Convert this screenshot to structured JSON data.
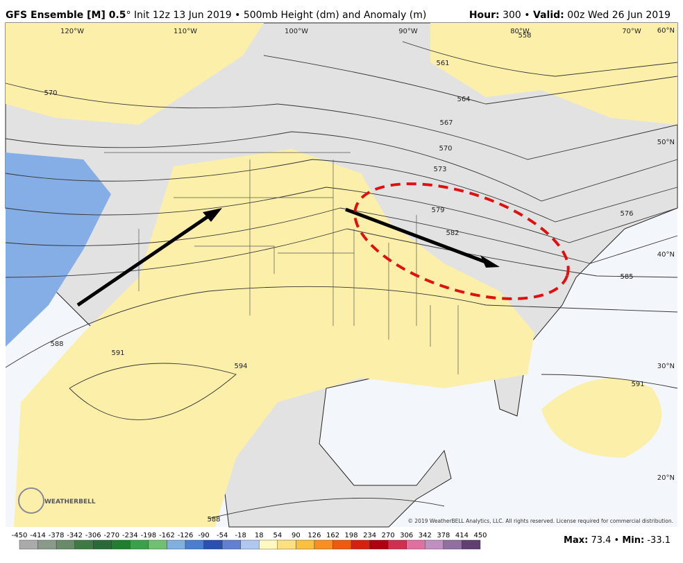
{
  "header": {
    "title_bold": "GFS Ensemble [M] 0.5",
    "title_rest": "° Init 12z 13 Jun 2019 • 500mb Height (dm) and Anomaly (m)",
    "hour_label": "Hour:",
    "hour_value": "300",
    "separator": "•",
    "valid_label": "Valid:",
    "valid_value": "00z Wed 26 Jun 2019"
  },
  "map": {
    "longitudes": [
      "120°W",
      "110°W",
      "100°W",
      "90°W",
      "80°W",
      "70°W"
    ],
    "latitudes": [
      "60°N",
      "50°N",
      "40°N",
      "30°N",
      "20°N"
    ],
    "contour_labels": [
      558,
      561,
      564,
      567,
      570,
      570,
      573,
      576,
      579,
      582,
      585,
      588,
      588,
      591,
      591,
      594
    ],
    "copyright": "© 2019 WeatherBELL Analytics, LLC. All rights reserved. License required for commercial distribution.",
    "logo": "WEATHERBELL"
  },
  "colorbar": {
    "ticks": [
      -450,
      -414,
      -378,
      -342,
      -306,
      -270,
      -234,
      -198,
      -162,
      -126,
      -90,
      -54,
      -18,
      18,
      54,
      90,
      126,
      162,
      198,
      234,
      270,
      306,
      342,
      378,
      414,
      450
    ]
  },
  "footer": {
    "max_label": "Max:",
    "max": 73.4,
    "separator": "•",
    "min_label": "Min:",
    "min": -33.1
  }
}
